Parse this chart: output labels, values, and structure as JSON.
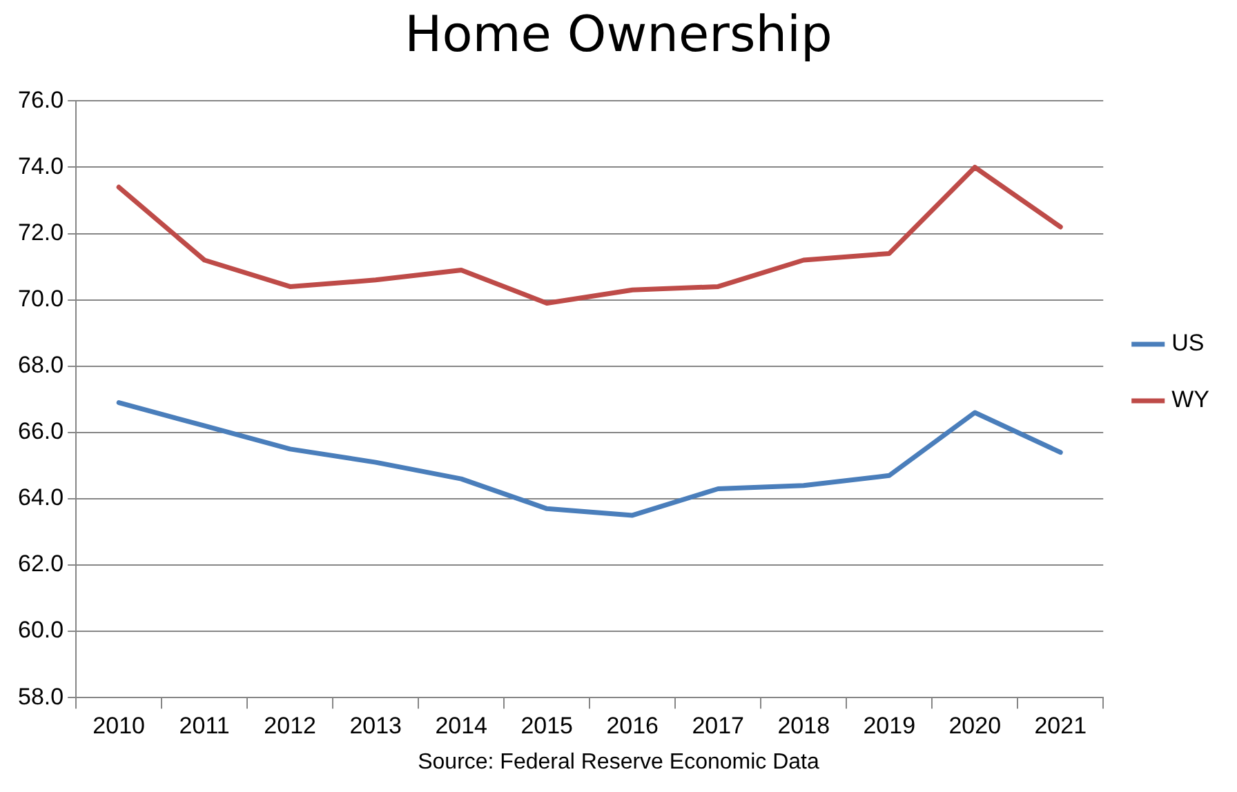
{
  "chart_data": {
    "type": "line",
    "title": "Home Ownership",
    "categories": [
      "2010",
      "2011",
      "2012",
      "2013",
      "2014",
      "2015",
      "2016",
      "2017",
      "2018",
      "2019",
      "2020",
      "2021"
    ],
    "series": [
      {
        "name": "US",
        "color": "#4a7ebb",
        "values": [
          66.9,
          66.2,
          65.5,
          65.1,
          64.6,
          63.7,
          63.5,
          64.3,
          64.4,
          64.7,
          66.6,
          65.4
        ]
      },
      {
        "name": "WY",
        "color": "#be4b48",
        "values": [
          73.4,
          71.2,
          70.4,
          70.6,
          70.9,
          69.9,
          70.3,
          70.4,
          71.2,
          71.4,
          74.0,
          72.2
        ]
      }
    ],
    "ylim": [
      58,
      76
    ],
    "yticks": [
      {
        "value": 58,
        "label": "58.0"
      },
      {
        "value": 60,
        "label": "60.0"
      },
      {
        "value": 62,
        "label": "62.0"
      },
      {
        "value": 64,
        "label": "64.0"
      },
      {
        "value": 66,
        "label": "66.0"
      },
      {
        "value": 68,
        "label": "68.0"
      },
      {
        "value": 70,
        "label": "70.0"
      },
      {
        "value": 72,
        "label": "72.0"
      },
      {
        "value": 74,
        "label": "74.0"
      },
      {
        "value": 76,
        "label": "76.0"
      }
    ],
    "grid": "y",
    "legend": "right",
    "marker": "none",
    "line_style": "solid",
    "annotations": [
      "Source: Federal Reserve Economic Data"
    ]
  }
}
